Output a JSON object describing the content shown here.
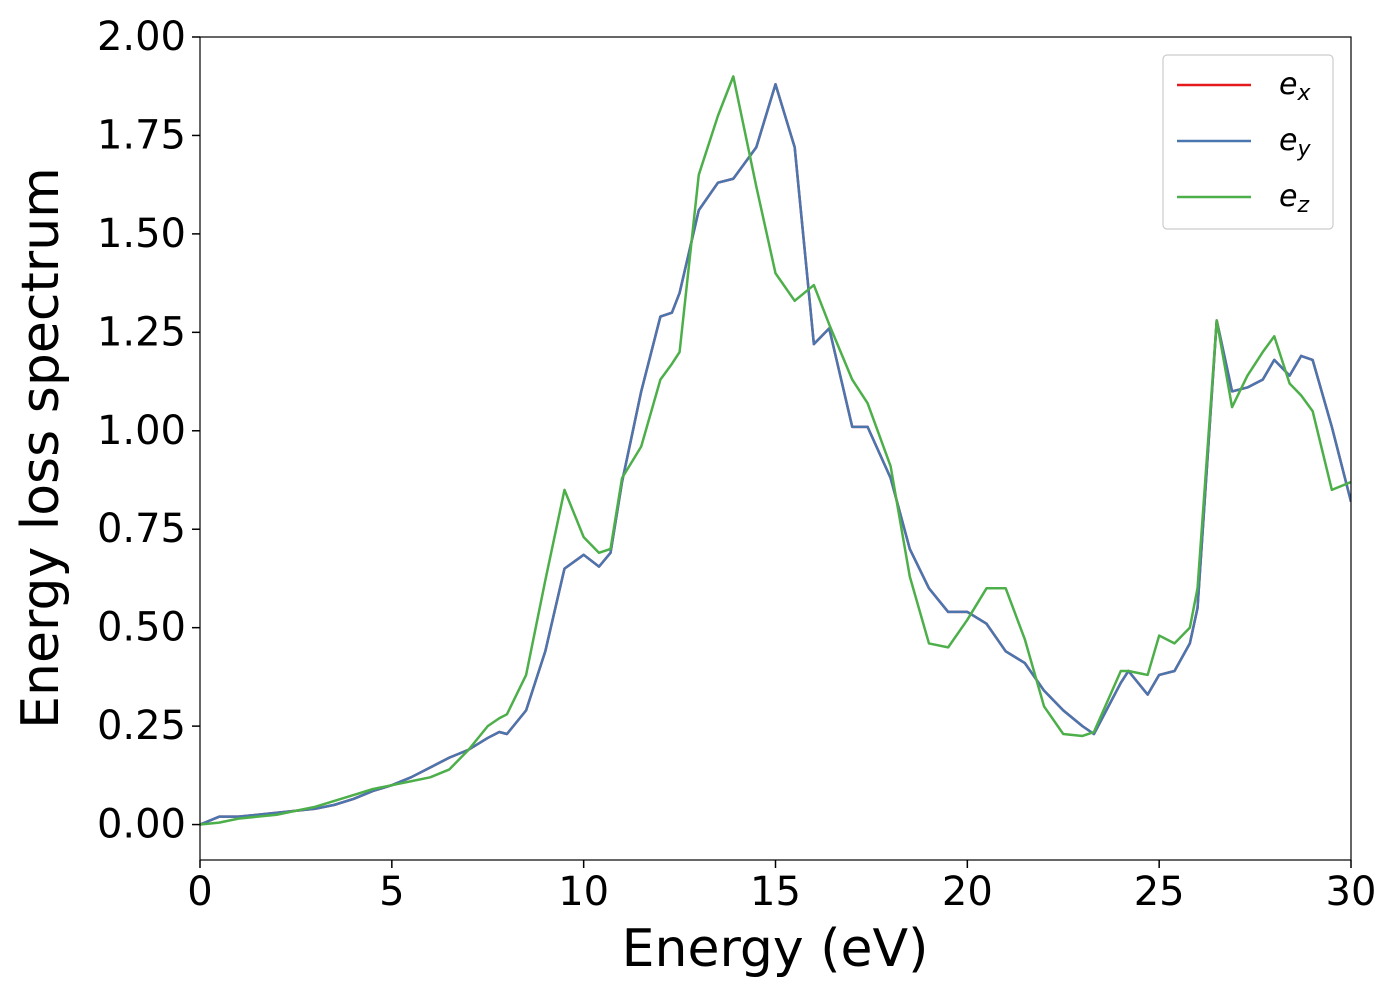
{
  "chart_data": {
    "type": "line",
    "xlabel": "Energy (eV)",
    "ylabel": "Energy loss spectrum",
    "x": [
      0,
      0.5,
      1,
      1.5,
      2,
      2.5,
      3,
      3.5,
      4,
      4.5,
      5,
      5.5,
      6,
      6.5,
      7,
      7.5,
      7.8,
      8,
      8.5,
      9,
      9.5,
      10,
      10.4,
      10.7,
      11,
      11.5,
      12,
      12.3,
      12.5,
      13,
      13.5,
      13.9,
      14.5,
      15,
      15.5,
      16,
      16.4,
      17,
      17.4,
      18,
      18.5,
      19,
      19.5,
      20,
      20.5,
      21,
      21.5,
      22,
      22.5,
      23,
      23.3,
      24,
      24.2,
      24.7,
      25,
      25.4,
      25.8,
      26,
      26.5,
      26.9,
      27.3,
      27.7,
      28,
      28.4,
      28.7,
      29,
      29.5,
      30
    ],
    "series": [
      {
        "name": "ex",
        "color": "#e41a1c",
        "values": [
          0,
          0.02,
          0.02,
          0.025,
          0.03,
          0.035,
          0.04,
          0.05,
          0.065,
          0.085,
          0.1,
          0.12,
          0.145,
          0.17,
          0.19,
          0.22,
          0.235,
          0.23,
          0.29,
          0.44,
          0.65,
          0.685,
          0.655,
          0.69,
          0.87,
          1.1,
          1.29,
          1.3,
          1.35,
          1.56,
          1.63,
          1.64,
          1.72,
          1.88,
          1.72,
          1.22,
          1.26,
          1.01,
          1.01,
          0.88,
          0.7,
          0.6,
          0.54,
          0.54,
          0.51,
          0.44,
          0.41,
          0.34,
          0.29,
          0.25,
          0.23,
          0.36,
          0.39,
          0.33,
          0.38,
          0.39,
          0.46,
          0.55,
          1.28,
          1.1,
          1.11,
          1.13,
          1.18,
          1.14,
          1.19,
          1.18,
          1.01,
          0.82
        ]
      },
      {
        "name": "ey",
        "color": "#4a76b0",
        "values": [
          0,
          0.02,
          0.02,
          0.025,
          0.03,
          0.035,
          0.04,
          0.05,
          0.065,
          0.085,
          0.1,
          0.12,
          0.145,
          0.17,
          0.19,
          0.22,
          0.235,
          0.23,
          0.29,
          0.44,
          0.65,
          0.685,
          0.655,
          0.69,
          0.87,
          1.1,
          1.29,
          1.3,
          1.35,
          1.56,
          1.63,
          1.64,
          1.72,
          1.88,
          1.72,
          1.22,
          1.26,
          1.01,
          1.01,
          0.88,
          0.7,
          0.6,
          0.54,
          0.54,
          0.51,
          0.44,
          0.41,
          0.34,
          0.29,
          0.25,
          0.23,
          0.36,
          0.39,
          0.33,
          0.38,
          0.39,
          0.46,
          0.55,
          1.28,
          1.1,
          1.11,
          1.13,
          1.18,
          1.14,
          1.19,
          1.18,
          1.01,
          0.82
        ]
      },
      {
        "name": "ez",
        "color": "#4daf4a",
        "values": [
          0,
          0.005,
          0.015,
          0.02,
          0.025,
          0.035,
          0.045,
          0.06,
          0.075,
          0.09,
          0.1,
          0.11,
          0.12,
          0.14,
          0.19,
          0.25,
          0.27,
          0.28,
          0.38,
          0.62,
          0.85,
          0.73,
          0.69,
          0.7,
          0.88,
          0.96,
          1.13,
          1.17,
          1.2,
          1.65,
          1.8,
          1.9,
          1.62,
          1.4,
          1.33,
          1.37,
          1.27,
          1.13,
          1.07,
          0.91,
          0.63,
          0.46,
          0.45,
          0.52,
          0.6,
          0.6,
          0.47,
          0.3,
          0.23,
          0.225,
          0.235,
          0.39,
          0.39,
          0.38,
          0.48,
          0.46,
          0.5,
          0.6,
          1.28,
          1.06,
          1.14,
          1.2,
          1.24,
          1.12,
          1.09,
          1.05,
          0.85,
          0.87
        ]
      }
    ],
    "xlim": [
      0,
      30
    ],
    "ylim": [
      -0.09,
      2.0
    ],
    "xticks": [
      0,
      5,
      10,
      15,
      20,
      25,
      30
    ],
    "yticks": [
      {
        "value": 0,
        "label": "0.00"
      },
      {
        "value": 0.25,
        "label": "0.25"
      },
      {
        "value": 0.5,
        "label": "0.50"
      },
      {
        "value": 0.75,
        "label": "0.75"
      },
      {
        "value": 1,
        "label": "1.00"
      },
      {
        "value": 1.25,
        "label": "1.25"
      },
      {
        "value": 1.5,
        "label": "1.50"
      },
      {
        "value": 1.75,
        "label": "1.75"
      },
      {
        "value": 2,
        "label": "2.00"
      }
    ],
    "grid": false,
    "legend": "upper right"
  }
}
